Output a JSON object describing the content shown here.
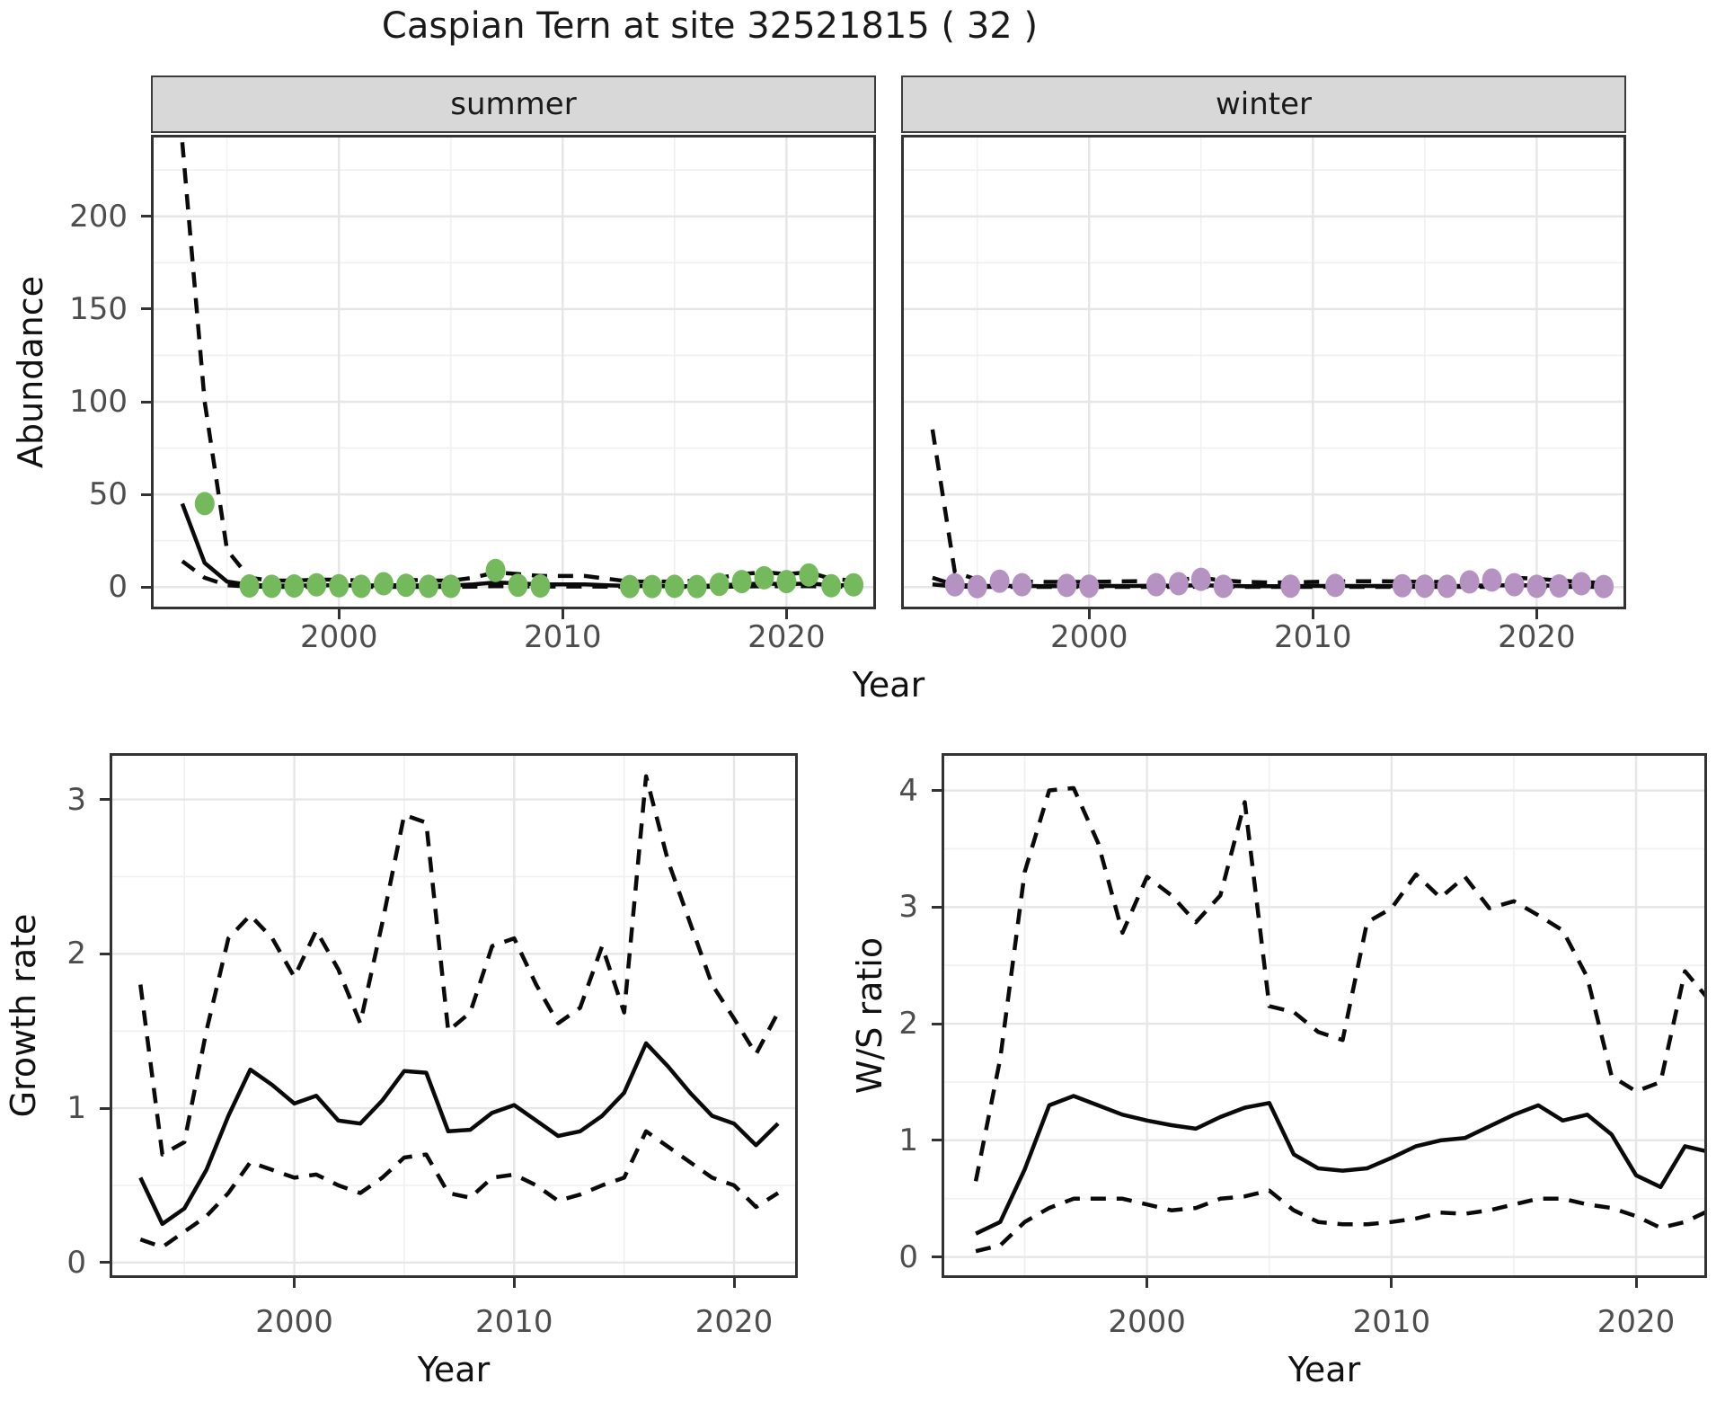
{
  "title": "Caspian Tern at site 32521815 ( 32 )",
  "axis": {
    "x_label": "Year",
    "abundance_label": "Abundance",
    "growth_label": "Growth rate",
    "ws_label": "W/S ratio"
  },
  "colors": {
    "summer_point": "#74ba5c",
    "winter_point": "#b692c3",
    "line": "#0a0a0a",
    "grid_major": "#e6e6e6",
    "grid_minor": "#f0f0f0",
    "panel_border": "#333333",
    "strip_bg": "#d8d8d8",
    "tick_text": "#4d4d4d"
  },
  "chart_data": [
    {
      "id": "abundance_summer",
      "type": "line",
      "strip_label": "summer",
      "ylabel": "Abundance",
      "xlabel": "Year",
      "xlim": [
        1991.6,
        2024.0
      ],
      "ylim": [
        -12,
        244
      ],
      "x_ticks": [
        2000,
        2010,
        2020
      ],
      "x_minor": [
        1995,
        2005,
        2015
      ],
      "y_ticks": [
        0,
        50,
        100,
        150,
        200
      ],
      "y_minor": [
        25,
        75,
        125,
        175,
        225
      ],
      "years": [
        1993,
        1994,
        1995,
        1996,
        1997,
        1998,
        1999,
        2000,
        2001,
        2002,
        2003,
        2004,
        2005,
        2006,
        2007,
        2008,
        2009,
        2010,
        2011,
        2012,
        2013,
        2014,
        2015,
        2016,
        2017,
        2018,
        2019,
        2020,
        2021,
        2022,
        2023
      ],
      "median": [
        45,
        13,
        3,
        1.2,
        0.8,
        0.8,
        1,
        1,
        0.8,
        1,
        1,
        0.8,
        0.8,
        1.5,
        2.5,
        2,
        1.5,
        1.5,
        1.5,
        1,
        0.6,
        0.5,
        0.5,
        0.5,
        1,
        1.5,
        2,
        1.5,
        2,
        1,
        1
      ],
      "upper": [
        240,
        100,
        20,
        5,
        3.5,
        3.5,
        4,
        4,
        3.5,
        4,
        4,
        3.5,
        3.5,
        5,
        8,
        7,
        6,
        6,
        6,
        4.5,
        3,
        3,
        3,
        3.5,
        5,
        7,
        8,
        7,
        8,
        4.5,
        3.5
      ],
      "lower": [
        14,
        5,
        1,
        0.3,
        0.1,
        0.1,
        0.1,
        0.1,
        0.1,
        0.1,
        0.1,
        0.1,
        0.1,
        0.2,
        0.5,
        0.4,
        0.3,
        0.3,
        0.3,
        0.2,
        0.1,
        0.1,
        0.1,
        0.1,
        0.2,
        0.3,
        0.5,
        0.4,
        0.5,
        0.2,
        0.1
      ],
      "points": [
        [
          1994,
          45
        ],
        [
          1996,
          0.6
        ],
        [
          1997,
          0.4
        ],
        [
          1998,
          0.6
        ],
        [
          1999,
          1.2
        ],
        [
          2000,
          0.7
        ],
        [
          2001,
          0.4
        ],
        [
          2002,
          1.8
        ],
        [
          2003,
          1
        ],
        [
          2004,
          0.4
        ],
        [
          2005,
          0.4
        ],
        [
          2007,
          9
        ],
        [
          2008,
          1
        ],
        [
          2009,
          0.6
        ],
        [
          2013,
          0.3
        ],
        [
          2014,
          0.3
        ],
        [
          2015,
          0.4
        ],
        [
          2016,
          0.3
        ],
        [
          2017,
          1.5
        ],
        [
          2018,
          3
        ],
        [
          2019,
          5
        ],
        [
          2020,
          3
        ],
        [
          2021,
          6.5
        ],
        [
          2022,
          0.7
        ],
        [
          2023,
          1.2
        ]
      ],
      "point_color": "#74ba5c"
    },
    {
      "id": "abundance_winter",
      "type": "line",
      "strip_label": "winter",
      "ylabel": "Abundance",
      "xlabel": "Year",
      "xlim": [
        1991.6,
        2024.0
      ],
      "ylim": [
        -12,
        244
      ],
      "x_ticks": [
        2000,
        2010,
        2020
      ],
      "x_minor": [
        1995,
        2005,
        2015
      ],
      "y_ticks": [
        0,
        50,
        100,
        150,
        200
      ],
      "y_minor": [
        25,
        75,
        125,
        175,
        225
      ],
      "years": [
        1993,
        1994,
        1995,
        1996,
        1997,
        1998,
        1999,
        2000,
        2001,
        2002,
        2003,
        2004,
        2005,
        2006,
        2007,
        2008,
        2009,
        2010,
        2011,
        2012,
        2013,
        2014,
        2015,
        2016,
        2017,
        2018,
        2019,
        2020,
        2021,
        2022,
        2023
      ],
      "median": [
        5,
        1.2,
        0.6,
        0.6,
        0.6,
        0.5,
        0.5,
        0.5,
        0.6,
        0.6,
        0.7,
        0.8,
        1,
        0.7,
        0.5,
        0.5,
        0.5,
        0.6,
        0.6,
        0.6,
        0.6,
        0.5,
        0.5,
        0.5,
        0.7,
        0.9,
        1,
        0.9,
        0.7,
        0.6,
        0.5
      ],
      "upper": [
        85,
        8,
        4,
        3.5,
        3,
        2.8,
        2.8,
        2.8,
        3,
        3.2,
        3.5,
        4,
        5,
        3.5,
        2.8,
        2.5,
        2.5,
        2.8,
        3,
        3.2,
        3.2,
        3,
        2.8,
        2.8,
        3.2,
        4,
        5,
        4.5,
        3.5,
        2.8,
        2.2
      ],
      "lower": [
        1.5,
        0.3,
        0.1,
        0.1,
        0.1,
        0.1,
        0.1,
        0.1,
        0.1,
        0.1,
        0.1,
        0.1,
        0.2,
        0.1,
        0.1,
        0.1,
        0.1,
        0.1,
        0.1,
        0.1,
        0.1,
        0.1,
        0.1,
        0.1,
        0.1,
        0.1,
        0.2,
        0.1,
        0.1,
        0.1,
        0.1
      ],
      "points": [
        [
          1994,
          1.2
        ],
        [
          1995,
          0.2
        ],
        [
          1996,
          3.2
        ],
        [
          1997,
          1.3
        ],
        [
          1999,
          0.9
        ],
        [
          2000,
          0.5
        ],
        [
          2003,
          1.3
        ],
        [
          2004,
          1.8
        ],
        [
          2005,
          4.2
        ],
        [
          2006,
          0.4
        ],
        [
          2009,
          0.5
        ],
        [
          2011,
          0.9
        ],
        [
          2014,
          0.7
        ],
        [
          2015,
          0.5
        ],
        [
          2016,
          0.4
        ],
        [
          2017,
          2.8
        ],
        [
          2018,
          3.8
        ],
        [
          2019,
          1.3
        ],
        [
          2020,
          0.4
        ],
        [
          2021,
          0.6
        ],
        [
          2022,
          1.8
        ],
        [
          2023,
          0.3
        ]
      ],
      "point_color": "#b692c3"
    },
    {
      "id": "growth_rate",
      "type": "line",
      "strip_label": null,
      "ylabel": "Growth rate",
      "xlabel": "Year",
      "xlim": [
        1991.6,
        2022.9
      ],
      "ylim": [
        -0.1,
        3.3
      ],
      "x_ticks": [
        2000,
        2010,
        2020
      ],
      "x_minor": [
        1995,
        2005,
        2015
      ],
      "y_ticks": [
        0,
        1,
        2,
        3
      ],
      "y_minor": [
        0.5,
        1.5,
        2.5
      ],
      "years": [
        1993,
        1994,
        1995,
        1996,
        1997,
        1998,
        1999,
        2000,
        2001,
        2002,
        2003,
        2004,
        2005,
        2006,
        2007,
        2008,
        2009,
        2010,
        2011,
        2012,
        2013,
        2014,
        2015,
        2016,
        2017,
        2018,
        2019,
        2020,
        2021,
        2022
      ],
      "median": [
        0.55,
        0.25,
        0.35,
        0.6,
        0.95,
        1.25,
        1.15,
        1.03,
        1.08,
        0.92,
        0.9,
        1.05,
        1.24,
        1.23,
        0.85,
        0.86,
        0.97,
        1.02,
        0.92,
        0.82,
        0.85,
        0.95,
        1.1,
        1.42,
        1.27,
        1.1,
        0.95,
        0.9,
        0.76,
        0.9
      ],
      "upper": [
        1.8,
        0.7,
        0.78,
        1.5,
        2.1,
        2.25,
        2.1,
        1.85,
        2.15,
        1.9,
        1.55,
        2.2,
        2.9,
        2.85,
        1.5,
        1.62,
        2.05,
        2.1,
        1.8,
        1.55,
        1.65,
        2.05,
        1.62,
        3.15,
        2.6,
        2.2,
        1.8,
        1.58,
        1.35,
        1.62
      ],
      "lower": [
        0.15,
        0.1,
        0.2,
        0.3,
        0.45,
        0.65,
        0.6,
        0.55,
        0.57,
        0.5,
        0.45,
        0.55,
        0.68,
        0.7,
        0.45,
        0.42,
        0.55,
        0.57,
        0.5,
        0.4,
        0.44,
        0.5,
        0.55,
        0.85,
        0.75,
        0.65,
        0.55,
        0.5,
        0.36,
        0.45
      ],
      "points": [],
      "point_color": null
    },
    {
      "id": "ws_ratio",
      "type": "line",
      "strip_label": null,
      "ylabel": "W/S ratio",
      "xlabel": "Year",
      "xlim": [
        1991.6,
        2022.9
      ],
      "ylim": [
        -0.18,
        4.32
      ],
      "x_ticks": [
        2000,
        2010,
        2020
      ],
      "x_minor": [
        1995,
        2005,
        2015
      ],
      "y_ticks": [
        0,
        1,
        2,
        3,
        4
      ],
      "y_minor": [
        0.5,
        1.5,
        2.5,
        3.5
      ],
      "years": [
        1993,
        1994,
        1995,
        1996,
        1997,
        1998,
        1999,
        2000,
        2001,
        2002,
        2003,
        2004,
        2005,
        2006,
        2007,
        2008,
        2009,
        2010,
        2011,
        2012,
        2013,
        2014,
        2015,
        2016,
        2017,
        2018,
        2019,
        2020,
        2021,
        2022,
        2023
      ],
      "median": [
        0.2,
        0.3,
        0.75,
        1.3,
        1.38,
        1.3,
        1.22,
        1.17,
        1.13,
        1.1,
        1.2,
        1.28,
        1.32,
        0.88,
        0.76,
        0.74,
        0.76,
        0.85,
        0.95,
        1.0,
        1.02,
        1.12,
        1.22,
        1.3,
        1.17,
        1.22,
        1.05,
        0.7,
        0.6,
        0.95,
        0.9
      ],
      "upper": [
        0.65,
        1.7,
        3.3,
        4.0,
        4.02,
        3.55,
        2.78,
        3.26,
        3.1,
        2.87,
        3.1,
        3.9,
        2.15,
        2.1,
        1.93,
        1.86,
        2.87,
        2.99,
        3.28,
        3.08,
        3.26,
        2.99,
        3.05,
        2.93,
        2.8,
        2.4,
        1.55,
        1.42,
        1.5,
        2.45,
        2.2
      ],
      "lower": [
        0.05,
        0.1,
        0.3,
        0.42,
        0.5,
        0.5,
        0.5,
        0.45,
        0.4,
        0.42,
        0.5,
        0.52,
        0.57,
        0.4,
        0.3,
        0.28,
        0.28,
        0.3,
        0.33,
        0.38,
        0.37,
        0.4,
        0.45,
        0.5,
        0.5,
        0.45,
        0.42,
        0.35,
        0.25,
        0.3,
        0.4
      ],
      "points": [],
      "point_color": null
    }
  ]
}
